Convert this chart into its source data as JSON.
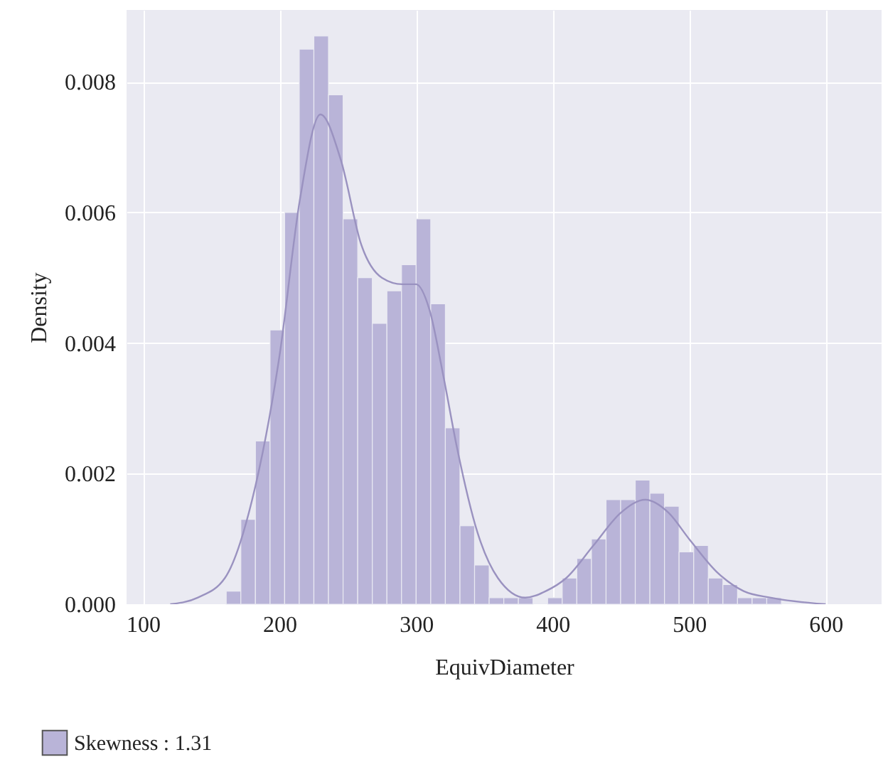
{
  "chart_data": {
    "type": "histogram",
    "xlabel": "EquivDiameter",
    "ylabel": "Density",
    "bins": [
      161,
      171.7,
      182.4,
      193.1,
      203.8,
      214.5,
      225.2,
      235.9,
      246.6,
      257.3,
      268,
      278.7,
      289.4,
      300.1,
      310.8,
      321.5,
      332.2,
      342.9,
      353.6,
      364.3,
      375,
      385.7,
      396.4,
      407.1,
      417.8,
      428.5,
      439.2,
      449.9,
      460.6,
      471.3,
      482,
      492.7,
      503.4,
      514.1,
      524.8,
      535.5,
      546.2,
      556.9,
      567.6
    ],
    "series": [
      {
        "name": "Skewness : 1.31",
        "color": "#b9b4d8",
        "values": [
          0.0002,
          0.0013,
          0.0025,
          0.0042,
          0.006,
          0.0085,
          0.0087,
          0.0078,
          0.0059,
          0.005,
          0.0043,
          0.0048,
          0.0052,
          0.0059,
          0.0046,
          0.0027,
          0.0012,
          0.0006,
          0.0001,
          0.0001,
          0.0001,
          null,
          0.0001,
          0.0004,
          0.0007,
          0.001,
          0.0016,
          0.0016,
          0.0019,
          0.0017,
          0.0015,
          0.0008,
          0.0009,
          0.0004,
          0.0003,
          0.0001,
          0.0001,
          0.0001
        ]
      },
      {
        "type": "line",
        "color": "#9a92c0",
        "x": [
          120,
          140,
          160,
          180,
          200,
          215,
          230,
          245,
          260,
          275,
          290,
          300,
          310,
          320,
          330,
          345,
          360,
          380,
          395,
          410,
          430,
          450,
          468,
          485,
          500,
          520,
          540,
          560,
          600
        ],
        "values": [
          0,
          0.0001,
          0.0004,
          0.0016,
          0.0038,
          0.0062,
          0.0075,
          0.0068,
          0.0055,
          0.005,
          0.0049,
          0.0049,
          0.0045,
          0.0035,
          0.0024,
          0.0011,
          0.0004,
          0.0001,
          0.0002,
          0.0004,
          0.0009,
          0.0014,
          0.0016,
          0.0014,
          0.001,
          0.0005,
          0.0002,
          0.0001,
          0
        ]
      }
    ],
    "xlim": [
      88,
      641
    ],
    "ylim": [
      0,
      0.0091
    ],
    "xticks": [
      100,
      200,
      300,
      400,
      500,
      600
    ],
    "yticks": [
      {
        "value": 0,
        "label": "0.000"
      },
      {
        "value": 0.002,
        "label": "0.002"
      },
      {
        "value": 0.004,
        "label": "0.004"
      },
      {
        "value": 0.006,
        "label": "0.006"
      },
      {
        "value": 0.008,
        "label": "0.008"
      }
    ],
    "grid": true,
    "legend": "bottom"
  }
}
